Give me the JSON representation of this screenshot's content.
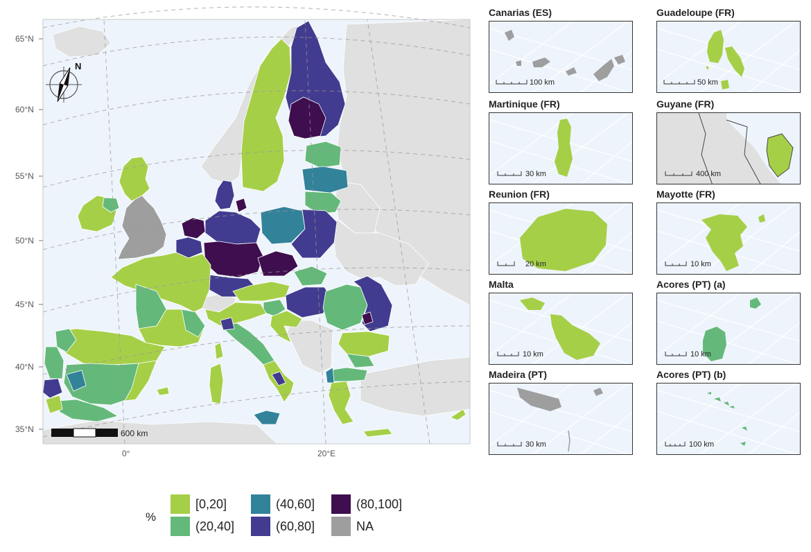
{
  "colors": {
    "c1": "#a6cf48",
    "c2": "#64b97a",
    "c3": "#32829a",
    "c4": "#413c8f",
    "c5": "#3e0e4f",
    "na": "#9e9e9e",
    "sea": "#eef4fb",
    "land_other": "#e0e0e0"
  },
  "main_map": {
    "lat_labels": [
      "65°N",
      "60°N",
      "55°N",
      "50°N",
      "45°N",
      "40°N",
      "35°N"
    ],
    "lon_labels": [
      "0°",
      "20°E"
    ],
    "scalebar_label": "600 km",
    "north_label": "N"
  },
  "insets": [
    {
      "title": "Canarias (ES)",
      "scale": "100 km"
    },
    {
      "title": "Guadeloupe (FR)",
      "scale": "50 km"
    },
    {
      "title": "Martinique (FR)",
      "scale": "30 km"
    },
    {
      "title": "Guyane (FR)",
      "scale": "400 km"
    },
    {
      "title": "Reunion (FR)",
      "scale": "20 km"
    },
    {
      "title": "Mayotte (FR)",
      "scale": "10 km"
    },
    {
      "title": "Malta",
      "scale": "10 km"
    },
    {
      "title": "Acores (PT) (a)",
      "scale": "10 km"
    },
    {
      "title": "Madeira (PT)",
      "scale": "30 km"
    },
    {
      "title": "Acores (PT) (b)",
      "scale": "100 km"
    }
  ],
  "legend": {
    "title": "%",
    "items": [
      {
        "label": "[0,20]",
        "color": "#a6cf48"
      },
      {
        "label": "(20,40]",
        "color": "#64b97a"
      },
      {
        "label": "(40,60]",
        "color": "#32829a"
      },
      {
        "label": "(60,80]",
        "color": "#413c8f"
      },
      {
        "label": "(80,100]",
        "color": "#3e0e4f"
      },
      {
        "label": "NA",
        "color": "#9e9e9e"
      }
    ]
  }
}
